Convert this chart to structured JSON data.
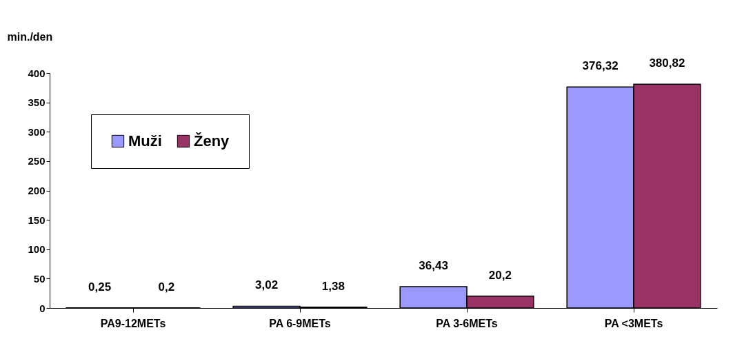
{
  "chart_data": {
    "type": "bar",
    "ylabel": "min./den",
    "categories": [
      "PA9-12METs",
      "PA 6-9METs",
      "PA 3-6METs",
      "PA <3METs"
    ],
    "series": [
      {
        "name": "Muži",
        "color": "#9999ff",
        "values": [
          0.25,
          3.02,
          36.43,
          376.32
        ],
        "value_labels": [
          "0,25",
          "3,02",
          "36,43",
          "376,32"
        ]
      },
      {
        "name": "Ženy",
        "color": "#993366",
        "values": [
          0.2,
          1.38,
          20.2,
          380.82
        ],
        "value_labels": [
          "0,2",
          "1,38",
          "20,2",
          "380,82"
        ]
      }
    ],
    "ylim": [
      0,
      400
    ],
    "yticks": [
      0,
      50,
      100,
      150,
      200,
      250,
      300,
      350,
      400
    ],
    "grid": false,
    "legend": "top left"
  }
}
